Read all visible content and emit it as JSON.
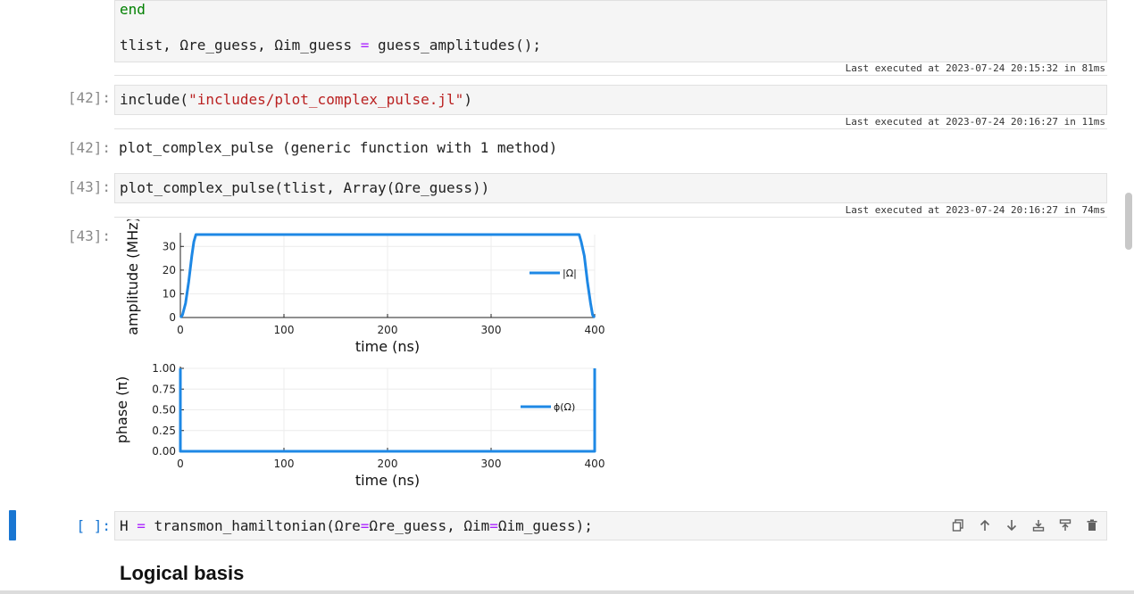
{
  "cells": {
    "cell_a": {
      "line_end": "end",
      "line_assign_lhs": "tlist, Ωre_guess, Ωim_guess ",
      "line_assign_op": "=",
      "line_assign_rhs": " guess_amplitudes();",
      "exec": "Last executed at 2023-07-24 20:15:32 in 81ms"
    },
    "cell_42": {
      "prompt": "[42]:",
      "code_fn": "include(",
      "code_str": "\"includes/plot_complex_pulse.jl\"",
      "code_close": ")",
      "exec": "Last executed at 2023-07-24 20:16:27 in 11ms",
      "out_prompt": "[42]:",
      "output": "plot_complex_pulse (generic function with 1 method)"
    },
    "cell_43": {
      "prompt": "[43]:",
      "code": "plot_complex_pulse(tlist, Array(Ωre_guess))",
      "exec": "Last executed at 2023-07-24 20:16:27 in 74ms",
      "out_prompt": "[43]:"
    },
    "cell_new": {
      "prompt": "[ ]:",
      "code_lhs": "H ",
      "code_eq1": "=",
      "code_mid1": " transmon_hamiltonian(Ωre",
      "code_eq2": "=",
      "code_mid2": "Ωre_guess, Ωim",
      "code_eq3": "=",
      "code_end": "Ωim_guess);"
    }
  },
  "markdown": {
    "heading": "Logical basis"
  },
  "toolbar": {
    "icons": [
      "copy-icon",
      "arrow-up-icon",
      "arrow-down-icon",
      "insert-below-icon",
      "insert-above-icon",
      "trash-icon"
    ]
  },
  "colors": {
    "series": "#1e88e5",
    "active_cell": "#1976d2",
    "string": "#ba2121",
    "keyword": "#008000",
    "operator": "#aa22ff"
  },
  "chart_data": [
    {
      "type": "line",
      "xlabel": "time (ns)",
      "ylabel": "amplitude (MHz)",
      "xlim": [
        0,
        400
      ],
      "ylim": [
        0,
        35
      ],
      "xticks": [
        0,
        100,
        200,
        300,
        400
      ],
      "yticks": [
        0,
        10,
        20,
        30
      ],
      "legend": "right",
      "grid": true,
      "series": [
        {
          "name": "|Ω|",
          "x": [
            0,
            2,
            5,
            8,
            11,
            13,
            15,
            385,
            387,
            390,
            393,
            396,
            398,
            400
          ],
          "y": [
            0,
            1,
            6,
            15,
            26,
            32,
            35,
            35,
            32,
            26,
            15,
            6,
            1,
            0
          ]
        }
      ]
    },
    {
      "type": "line",
      "xlabel": "time (ns)",
      "ylabel": "phase (π)",
      "xlim": [
        0,
        400
      ],
      "ylim": [
        0,
        1
      ],
      "xticks": [
        0,
        100,
        200,
        300,
        400
      ],
      "yticks": [
        "0.00",
        "0.25",
        "0.50",
        "0.75",
        "1.00"
      ],
      "legend": "right",
      "grid": true,
      "series": [
        {
          "name": "ϕ(Ω)",
          "x": [
            0,
            0,
            400,
            400
          ],
          "y": [
            1,
            0,
            0,
            1
          ]
        }
      ]
    }
  ]
}
